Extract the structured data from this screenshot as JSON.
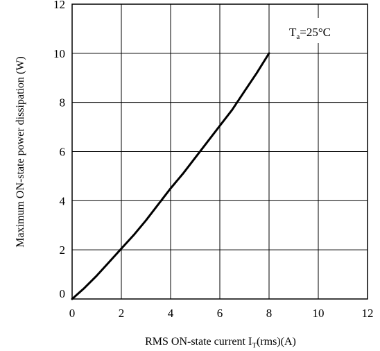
{
  "chart_data": {
    "type": "line",
    "title": "",
    "xlabel": "RMS ON-state current I",
    "xlabel_sub": "T",
    "xlabel_suffix": "(rms)(A)",
    "ylabel": "Maximum ON-state power dissipation (W)",
    "annotation": {
      "main": "T",
      "sub": "a",
      "rest": "=25°C"
    },
    "xlim": [
      0,
      12
    ],
    "ylim": [
      0,
      12
    ],
    "xticks": [
      0,
      2,
      4,
      6,
      8,
      10,
      12
    ],
    "yticks": [
      0,
      2,
      4,
      6,
      8,
      10,
      12
    ],
    "grid": true,
    "series": [
      {
        "x": [
          0,
          0.5,
          1,
          1.5,
          2,
          2.5,
          3,
          3.5,
          4,
          4.5,
          5,
          5.5,
          6,
          6.5,
          7,
          7.5,
          8
        ],
        "y": [
          0,
          0.45,
          0.95,
          1.5,
          2.05,
          2.6,
          3.2,
          3.85,
          4.5,
          5.1,
          5.75,
          6.4,
          7.05,
          7.7,
          8.45,
          9.2,
          10.0
        ]
      }
    ]
  }
}
